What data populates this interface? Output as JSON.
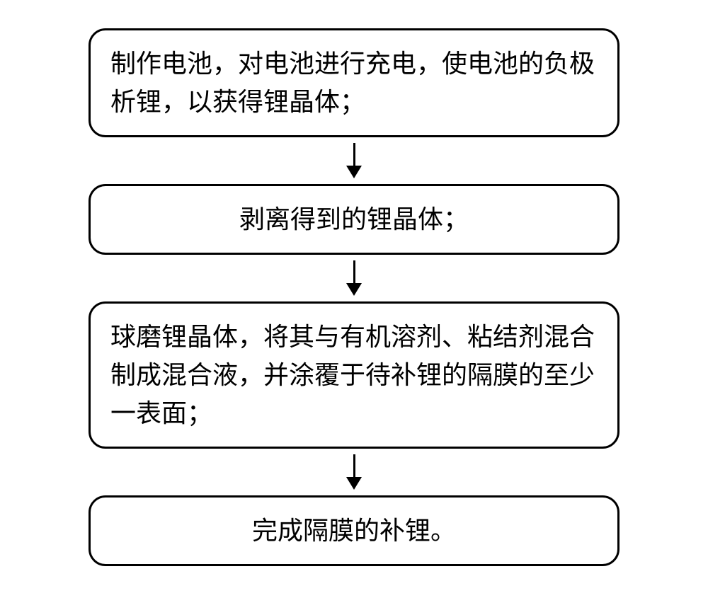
{
  "flowchart": {
    "type": "flowchart",
    "direction": "vertical",
    "background_color": "#ffffff",
    "box_border_color": "#000000",
    "box_border_width": 3,
    "box_border_radius": 24,
    "box_font_size": 36,
    "box_font_family": "SimSun",
    "arrow_color": "#000000",
    "arrow_line_width": 3,
    "arrow_line_length": 32,
    "arrow_head_width": 22,
    "arrow_head_height": 18,
    "container_width": 750,
    "nodes": [
      {
        "id": "step1",
        "text": "制作电池，对电池进行充电，使电池的负极析锂，以获得锂晶体；",
        "align": "left"
      },
      {
        "id": "step2",
        "text": "剥离得到的锂晶体；",
        "align": "center"
      },
      {
        "id": "step3",
        "text": "球磨锂晶体，将其与有机溶剂、粘结剂混合制成混合液，并涂覆于待补锂的隔膜的至少一表面；",
        "align": "left"
      },
      {
        "id": "step4",
        "text": "完成隔膜的补锂。",
        "align": "center"
      }
    ],
    "edges": [
      {
        "from": "step1",
        "to": "step2"
      },
      {
        "from": "step2",
        "to": "step3"
      },
      {
        "from": "step3",
        "to": "step4"
      }
    ]
  }
}
